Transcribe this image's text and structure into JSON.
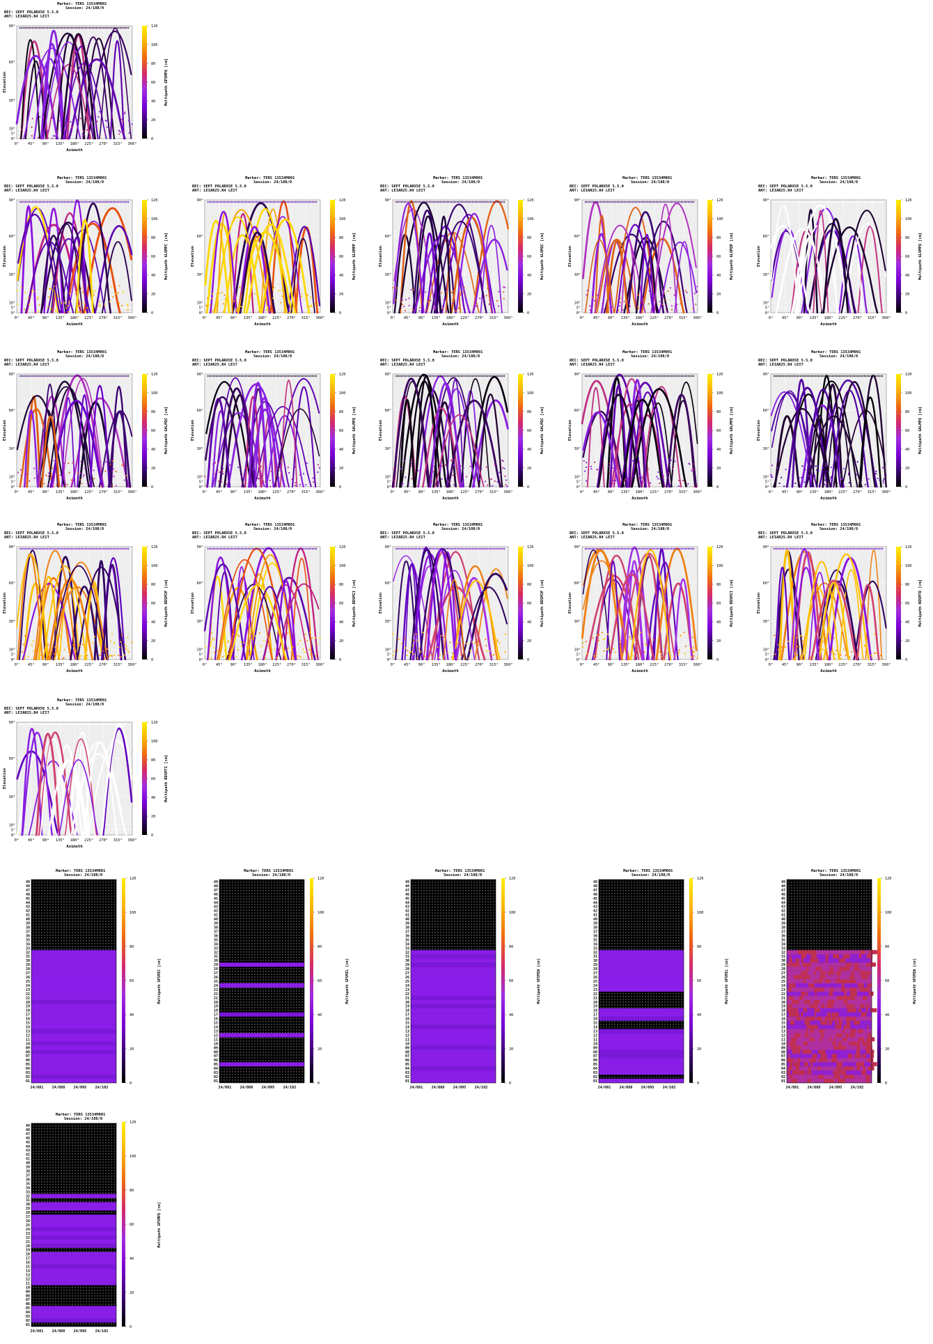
{
  "legend": {
    "cb_ticks": [
      "0",
      "20",
      "40",
      "60",
      "80",
      "100",
      "120"
    ],
    "colors": [
      "#000000",
      "#3a0070",
      "#7a00d6",
      "#a02ce0",
      "#d42a6a",
      "#ef6a10",
      "#fbb40a",
      "#ffee00"
    ]
  },
  "skyplot_axes": {
    "xticks": [
      "0°",
      "45°",
      "90°",
      "135°",
      "180°",
      "225°",
      "270°",
      "315°",
      "360°"
    ],
    "yticks": [
      "0°",
      "5°",
      "10°",
      "30°",
      "60°",
      "90°"
    ],
    "xlabel": "Azimuth",
    "ylabel": "Elevation"
  },
  "heat_axes": {
    "xticks": [
      "24/081",
      "24/088",
      "24/095",
      "24/102"
    ],
    "yticks": [
      "01",
      "02",
      "03",
      "04",
      "05",
      "06",
      "07",
      "08",
      "09",
      "10",
      "11",
      "12",
      "13",
      "14",
      "15",
      "16",
      "17",
      "18",
      "19",
      "20",
      "21",
      "22",
      "23",
      "24",
      "25",
      "26",
      "27",
      "28",
      "29",
      "30",
      "31",
      "32",
      "33",
      "34",
      "35",
      "36",
      "37",
      "38",
      "39",
      "40",
      "41",
      "42",
      "43",
      "44",
      "45",
      "46",
      "47",
      "48",
      "49"
    ]
  },
  "skyplots": [
    {
      "marker": "Marker: TERS 13534M001",
      "session": "Session: 24/108/0",
      "rec": "REC: SEPT POLARX5E       5.5.0",
      "ant": "ANT: LEIAR25.R4      LEIT",
      "cblabel": "Multipath GPSMPQ [cm]",
      "style": "dark"
    },
    {
      "marker": "Marker: TERS 13534M001",
      "session": "Session: 24/108/0",
      "rec": "REC: SEPT POLARX5E       5.5.0",
      "ant": "ANT: LEIAR25.R4      LEIT",
      "cblabel": "Multipath GLOMPC [cm]",
      "style": "hot"
    },
    {
      "marker": "Marker: TERS 13534M001",
      "session": "Session: 24/108/0",
      "rec": "REC: SEPT POLARX5E       5.5.0",
      "ant": "ANT: LEIAR25.R4      LEIT",
      "cblabel": "Multipath GLOMPP [cm]",
      "style": "hot"
    },
    {
      "marker": "Marker: TERS 13534M001",
      "session": "Session: 24/108/0",
      "rec": "REC: SEPT POLARX5E       5.5.0",
      "ant": "ANT: LEIAR25.R4      LEIT",
      "cblabel": "Multipath GLOMQC [cm]",
      "style": "mid"
    },
    {
      "marker": "Marker: TERS 13534M001",
      "session": "Session: 24/108/0",
      "rec": "REC: SEPT POLARX5E       5.5.0",
      "ant": "ANT: LEIAR25.R4      LEIT",
      "cblabel": "Multipath GLOMQP [cm]",
      "style": "mid"
    },
    {
      "marker": "Marker: TERS 13534M001",
      "session": "Session: 24/108/0",
      "rec": "REC: SEPT POLARX5E       5.5.0",
      "ant": "ANT: LEIAR25.R4      LEIT",
      "cblabel": "Multipath GLOMPQ [cm]",
      "style": "sparse"
    },
    {
      "marker": "Marker: TERS 13534M001",
      "session": "Session: 24/108/0",
      "rec": "REC: SEPT POLARX5E       5.5.0",
      "ant": "ANT: LEIAR25.R4      LEIT",
      "cblabel": "Multipath GALMQC [cm]",
      "style": "mid"
    },
    {
      "marker": "Marker: TERS 13534M001",
      "session": "Session: 24/108/0",
      "rec": "REC: SEPT POLARX5E       5.5.0",
      "ant": "ANT: LEIAR25.R4      LEIT",
      "cblabel": "Multipath GALMPQ [cm]",
      "style": "dark"
    },
    {
      "marker": "Marker: TERS 13534M001",
      "session": "Session: 24/108/0",
      "rec": "REC: SEPT POLARX5E       5.5.0",
      "ant": "ANT: LEIAR25.R4      LEIT",
      "cblabel": "Multipath GALMQC [cm]",
      "style": "dark"
    },
    {
      "marker": "Marker: TERS 13534M001",
      "session": "Session: 24/108/0",
      "rec": "REC: SEPT POLARX5E       5.5.0",
      "ant": "ANT: LEIAR25.R4      LEIT",
      "cblabel": "Multipath GALMPQ [cm]",
      "style": "dark"
    },
    {
      "marker": "Marker: TERS 13534M001",
      "session": "Session: 24/108/0",
      "rec": "REC: SEPT POLARX5E       5.5.0",
      "ant": "ANT: LEIAR25.R4      LEIT",
      "cblabel": "Multipath GALMPQ [cm]",
      "style": "darkest"
    },
    {
      "marker": "Marker: TERS 13534M001",
      "session": "Session: 24/108/0",
      "rec": "REC: SEPT POLARX5E       5.5.0",
      "ant": "ANT: LEIAR25.R4      LEIT",
      "cblabel": "Multipath BDSMIP [cm]",
      "style": "purple"
    },
    {
      "marker": "Marker: TERS 13534M001",
      "session": "Session: 24/108/0",
      "rec": "REC: SEPT POLARX5E       5.5.0",
      "ant": "ANT: LEIAR25.R4      LEIT",
      "cblabel": "Multipath BDSMII [cm]",
      "style": "hot"
    },
    {
      "marker": "Marker: TERS 13534M001",
      "session": "Session: 24/108/0",
      "rec": "REC: SEPT POLARX5E       5.5.0",
      "ant": "ANT: LEIAR25.R4      LEIT",
      "cblabel": "Multipath BDSMIP [cm]",
      "style": "purple"
    },
    {
      "marker": "Marker: TERS 13534M001",
      "session": "Session: 24/108/0",
      "rec": "REC: SEPT POLARX5E       5.5.0",
      "ant": "ANT: LEIAR25.R4      LEIT",
      "cblabel": "Multipath BDSMII [cm]",
      "style": "purple"
    },
    {
      "marker": "Marker: TERS 13534M001",
      "session": "Session: 24/108/0",
      "rec": "REC: SEPT POLARX5E       5.5.0",
      "ant": "ANT: LEIAR25.R4      LEIT",
      "cblabel": "Multipath BDSMTD [cm]",
      "style": "purple"
    },
    {
      "marker": "Marker: TERS 13534M001",
      "session": "Session: 24/108/0",
      "rec": "REC: SEPT POLARX5E       5.5.0",
      "ant": "ANT: LEIAR25.R4      LEIT",
      "cblabel": "Multipath BDSMTI [cm]",
      "style": "ghost"
    }
  ],
  "heatmaps": [
    {
      "marker": "Marker: TERS 13534M001",
      "session": "Session: 24/108/0",
      "cblabel": "Multipath GPSMIC [cm]",
      "pattern": "full"
    },
    {
      "marker": "Marker: TERS 13534M001",
      "session": "Session: 24/108/0",
      "cblabel": "Multipath GPSMIL [cm]",
      "pattern": "stripes"
    },
    {
      "marker": "Marker: TERS 13534M001",
      "session": "Session: 24/108/0",
      "cblabel": "Multipath GPSMIW [cm]",
      "pattern": "full"
    },
    {
      "marker": "Marker: TERS 13534M001",
      "session": "Session: 24/108/0",
      "cblabel": "Multipath GPSMIL [cm]",
      "pattern": "partial"
    },
    {
      "marker": "Marker: TERS 13534M001",
      "session": "Session: 24/108/0",
      "cblabel": "Multipath GPSMIW [cm]",
      "pattern": "hotfull"
    },
    {
      "marker": "Marker: TERS 13534M001",
      "session": "Session: 24/108/0",
      "cblabel": "Multipath GPSMPQ [cm]",
      "pattern": "mixed"
    }
  ],
  "chart_data": [
    {
      "type": "scatter",
      "xlabel": "Azimuth",
      "ylabel": "Elevation",
      "xlim": [
        0,
        360
      ],
      "ylim": [
        0,
        90
      ],
      "colorbar_label": "Multipath GPSMPQ [cm]",
      "colorbar_range": [
        0,
        120
      ]
    },
    {
      "type": "scatter",
      "xlabel": "Azimuth",
      "ylabel": "Elevation",
      "xlim": [
        0,
        360
      ],
      "ylim": [
        0,
        90
      ],
      "colorbar_label": "Multipath GLOMPC [cm]",
      "colorbar_range": [
        0,
        120
      ]
    },
    {
      "type": "scatter",
      "xlabel": "Azimuth",
      "ylabel": "Elevation",
      "xlim": [
        0,
        360
      ],
      "ylim": [
        0,
        90
      ],
      "colorbar_label": "Multipath GLOMPP [cm]",
      "colorbar_range": [
        0,
        120
      ]
    },
    {
      "type": "scatter",
      "xlabel": "Azimuth",
      "ylabel": "Elevation",
      "xlim": [
        0,
        360
      ],
      "ylim": [
        0,
        90
      ],
      "colorbar_label": "Multipath GLOMQC [cm]",
      "colorbar_range": [
        0,
        120
      ]
    },
    {
      "type": "scatter",
      "xlabel": "Azimuth",
      "ylabel": "Elevation",
      "xlim": [
        0,
        360
      ],
      "ylim": [
        0,
        90
      ],
      "colorbar_label": "Multipath GLOMQP [cm]",
      "colorbar_range": [
        0,
        120
      ]
    },
    {
      "type": "scatter",
      "xlabel": "Azimuth",
      "ylabel": "Elevation",
      "xlim": [
        0,
        360
      ],
      "ylim": [
        0,
        90
      ],
      "colorbar_label": "Multipath GLOMPQ [cm]",
      "colorbar_range": [
        0,
        120
      ]
    },
    {
      "type": "scatter",
      "xlabel": "Azimuth",
      "ylabel": "Elevation",
      "xlim": [
        0,
        360
      ],
      "ylim": [
        0,
        90
      ],
      "colorbar_label": "Multipath GALMQC [cm]",
      "colorbar_range": [
        0,
        120
      ]
    },
    {
      "type": "scatter",
      "xlabel": "Azimuth",
      "ylabel": "Elevation",
      "xlim": [
        0,
        360
      ],
      "ylim": [
        0,
        90
      ],
      "colorbar_label": "Multipath GALMPQ [cm]",
      "colorbar_range": [
        0,
        120
      ]
    },
    {
      "type": "scatter",
      "xlabel": "Azimuth",
      "ylabel": "Elevation",
      "xlim": [
        0,
        360
      ],
      "ylim": [
        0,
        90
      ],
      "colorbar_label": "Multipath GALMQC [cm]",
      "colorbar_range": [
        0,
        120
      ]
    },
    {
      "type": "scatter",
      "xlabel": "Azimuth",
      "ylabel": "Elevation",
      "xlim": [
        0,
        360
      ],
      "ylim": [
        0,
        90
      ],
      "colorbar_label": "Multipath GALMPQ [cm]",
      "colorbar_range": [
        0,
        120
      ]
    },
    {
      "type": "scatter",
      "xlabel": "Azimuth",
      "ylabel": "Elevation",
      "xlim": [
        0,
        360
      ],
      "ylim": [
        0,
        90
      ],
      "colorbar_label": "Multipath GALMPQ [cm]",
      "colorbar_range": [
        0,
        120
      ]
    },
    {
      "type": "scatter",
      "xlabel": "Azimuth",
      "ylabel": "Elevation",
      "xlim": [
        0,
        360
      ],
      "ylim": [
        0,
        90
      ],
      "colorbar_label": "Multipath BDSMIP [cm]",
      "colorbar_range": [
        0,
        120
      ]
    },
    {
      "type": "scatter",
      "xlabel": "Azimuth",
      "ylabel": "Elevation",
      "xlim": [
        0,
        360
      ],
      "ylim": [
        0,
        90
      ],
      "colorbar_label": "Multipath BDSMII [cm]",
      "colorbar_range": [
        0,
        120
      ]
    },
    {
      "type": "scatter",
      "xlabel": "Azimuth",
      "ylabel": "Elevation",
      "xlim": [
        0,
        360
      ],
      "ylim": [
        0,
        90
      ],
      "colorbar_label": "Multipath BDSMIP [cm]",
      "colorbar_range": [
        0,
        120
      ]
    },
    {
      "type": "scatter",
      "xlabel": "Azimuth",
      "ylabel": "Elevation",
      "xlim": [
        0,
        360
      ],
      "ylim": [
        0,
        90
      ],
      "colorbar_label": "Multipath BDSMII [cm]",
      "colorbar_range": [
        0,
        120
      ]
    },
    {
      "type": "scatter",
      "xlabel": "Azimuth",
      "ylabel": "Elevation",
      "xlim": [
        0,
        360
      ],
      "ylim": [
        0,
        90
      ],
      "colorbar_label": "Multipath BDSMTD [cm]",
      "colorbar_range": [
        0,
        120
      ]
    },
    {
      "type": "scatter",
      "xlabel": "Azimuth",
      "ylabel": "Elevation",
      "xlim": [
        0,
        360
      ],
      "ylim": [
        0,
        90
      ],
      "colorbar_label": "Multipath BDSMTI [cm]",
      "colorbar_range": [
        0,
        120
      ]
    },
    {
      "type": "heatmap",
      "x": [
        "24/081",
        "24/088",
        "24/095",
        "24/102"
      ],
      "colorbar_label": "Multipath GPSMIC [cm]",
      "colorbar_range": [
        0,
        120
      ]
    },
    {
      "type": "heatmap",
      "x": [
        "24/081",
        "24/088",
        "24/095",
        "24/102"
      ],
      "colorbar_label": "Multipath GPSMIL [cm]",
      "colorbar_range": [
        0,
        120
      ]
    },
    {
      "type": "heatmap",
      "x": [
        "24/081",
        "24/088",
        "24/095",
        "24/102"
      ],
      "colorbar_label": "Multipath GPSMIW [cm]",
      "colorbar_range": [
        0,
        120
      ]
    },
    {
      "type": "heatmap",
      "x": [
        "24/081",
        "24/088",
        "24/095",
        "24/102"
      ],
      "colorbar_label": "Multipath GPSMIL [cm]",
      "colorbar_range": [
        0,
        120
      ]
    },
    {
      "type": "heatmap",
      "x": [
        "24/081",
        "24/088",
        "24/095",
        "24/102"
      ],
      "colorbar_label": "Multipath GPSMIW [cm]",
      "colorbar_range": [
        0,
        120
      ]
    },
    {
      "type": "heatmap",
      "x": [
        "24/081",
        "24/088",
        "24/095",
        "24/102"
      ],
      "colorbar_label": "Multipath GPSMPQ [cm]",
      "colorbar_range": [
        0,
        120
      ]
    }
  ]
}
